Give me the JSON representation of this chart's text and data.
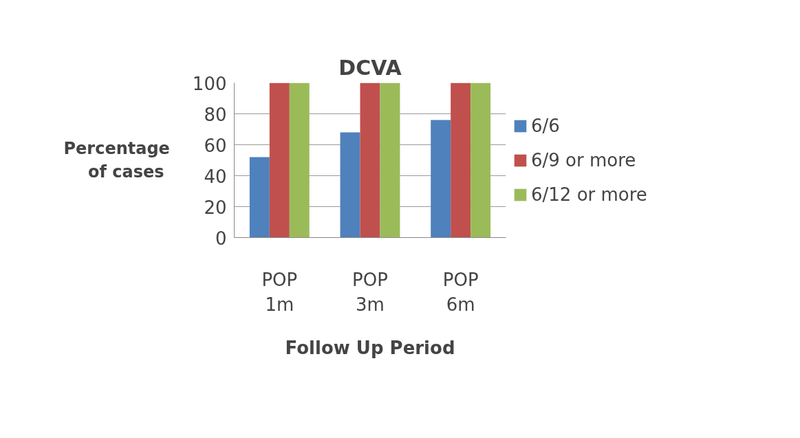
{
  "chart_data": {
    "type": "bar",
    "title": "DCVA",
    "xlabel": "Follow Up Period",
    "ylabel": "Percentage of  cases",
    "categories": [
      "POP 1m",
      "POP 3m",
      "POP 6m"
    ],
    "series": [
      {
        "name": "6/6",
        "color": "#4f81bd",
        "values": [
          52,
          68,
          76
        ]
      },
      {
        "name": "6/9 or more",
        "color": "#c0504d",
        "values": [
          100,
          100,
          100
        ]
      },
      {
        "name": "6/12 or more",
        "color": "#9bbb59",
        "values": [
          100,
          100,
          100
        ]
      }
    ],
    "ylim": [
      0,
      100
    ],
    "yticks": [
      0,
      20,
      40,
      60,
      80,
      100
    ],
    "grid": "y",
    "legend": "right"
  }
}
